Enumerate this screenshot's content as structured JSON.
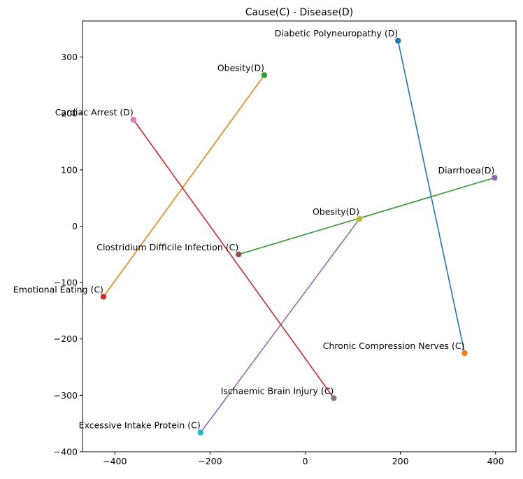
{
  "chart_data": {
    "type": "scatter",
    "title": "Cause(C) - Disease(D)",
    "xlabel": "",
    "ylabel": "",
    "xlim": [
      -468,
      443
    ],
    "ylim": [
      -400,
      364
    ],
    "xticks": [
      -400,
      -200,
      0,
      200,
      400
    ],
    "yticks": [
      -400,
      -300,
      -200,
      -100,
      0,
      100,
      200,
      300
    ],
    "xtick_labels": [
      "−400",
      "−200",
      "0",
      "200",
      "400"
    ],
    "ytick_labels": [
      "−400",
      "−300",
      "−200",
      "−100",
      "0",
      "100",
      "200",
      "300"
    ],
    "grid": false,
    "legend": "none",
    "series": [
      {
        "line_color": "#1f77b4",
        "start": {
          "x": 195,
          "y": 329,
          "label": "Diabetic Polyneuropathy (D)",
          "color": "#1f77b4"
        },
        "end": {
          "x": 335,
          "y": -225,
          "label": "Chronic Compression Nerves (C)",
          "color": "#ff7f0e"
        }
      },
      {
        "line_color": "#ff7f0e",
        "start": {
          "x": -86,
          "y": 268,
          "label": "Obesity(D)",
          "color": "#2ca02c"
        },
        "end": {
          "x": -424,
          "y": -125,
          "label": "Emotional Eating (C)",
          "color": "#d62728"
        }
      },
      {
        "line_color": "#2ca02c",
        "start": {
          "x": 398,
          "y": 86,
          "label": "Diarrhoea(D)",
          "color": "#9467bd"
        },
        "end": {
          "x": -140,
          "y": -50,
          "label": "Clostridium Difficile Infection (C)",
          "color": "#8c564b"
        }
      },
      {
        "line_color": "#d62728",
        "start": {
          "x": -361,
          "y": 189,
          "label": "Cardiac Arrest (D)",
          "color": "#e377c2"
        },
        "end": {
          "x": 60,
          "y": -305,
          "label": "Ischaemic Brain Injury (C)",
          "color": "#7f7f7f"
        }
      },
      {
        "line_color": "#9467bd",
        "start": {
          "x": 114,
          "y": 13,
          "label": "Obesity(D)",
          "color": "#bcbd22"
        },
        "end": {
          "x": -220,
          "y": -366,
          "label": "Excessive Intake Protein (C)",
          "color": "#17becf"
        }
      }
    ]
  }
}
